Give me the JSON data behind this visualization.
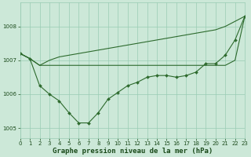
{
  "background_color": "#cce8d8",
  "grid_color": "#99ccb3",
  "line_color": "#2d6a2d",
  "xlabel": "Graphe pression niveau de la mer (hPa)",
  "xlim": [
    0,
    23
  ],
  "ylim": [
    1004.7,
    1008.7
  ],
  "yticks": [
    1005,
    1006,
    1007,
    1008
  ],
  "xtick_labels": [
    "0",
    "1",
    "2",
    "3",
    "4",
    "5",
    "6",
    "7",
    "8",
    "9",
    "10",
    "11",
    "12",
    "13",
    "14",
    "15",
    "16",
    "17",
    "18",
    "19",
    "20",
    "21",
    "22",
    "23"
  ],
  "series_measured": [
    1007.2,
    1007.05,
    1006.25,
    1006.0,
    1005.8,
    1005.45,
    1005.15,
    1005.15,
    1005.45,
    1005.85,
    1006.05,
    1006.25,
    1006.35,
    1006.5,
    1006.55,
    1006.55,
    1006.5,
    1006.55,
    1006.65,
    1006.9,
    1006.9,
    1007.15,
    1007.6,
    1008.3
  ],
  "series_flat": [
    1007.2,
    1007.05,
    1006.85,
    1006.85,
    1006.85,
    1006.85,
    1006.85,
    1006.85,
    1006.85,
    1006.85,
    1006.85,
    1006.85,
    1006.85,
    1006.85,
    1006.85,
    1006.85,
    1006.85,
    1006.85,
    1006.85,
    1006.85,
    1006.85,
    1006.85,
    1007.0,
    1008.3
  ],
  "series_diag": [
    1007.2,
    1007.05,
    1006.85,
    1007.0,
    1007.1,
    1007.15,
    1007.2,
    1007.25,
    1007.3,
    1007.35,
    1007.4,
    1007.45,
    1007.5,
    1007.55,
    1007.6,
    1007.65,
    1007.7,
    1007.75,
    1007.8,
    1007.85,
    1007.9,
    1008.0,
    1008.15,
    1008.3
  ],
  "marker_size": 2.0,
  "line_width": 0.8,
  "font_color": "#1a4a1a",
  "tick_fontsize": 5.0,
  "xlabel_fontsize": 6.5
}
